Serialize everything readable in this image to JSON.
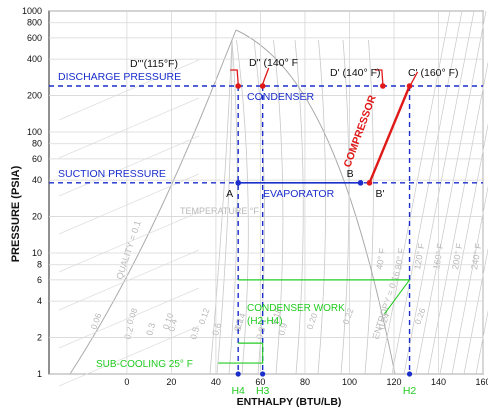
{
  "colors": {
    "blue": "#1a2ecc",
    "red": "#e01818",
    "green": "#22cc22",
    "dark": "#111111",
    "bg_lines": "#c8c8c8",
    "bg_text": "#b8b8b8"
  },
  "chart_data": {
    "type": "line",
    "xlabel": "ENTHALPY (BTU/LB)",
    "ylabel": "PRESSURE (PSIA)",
    "xlim": [
      -35,
      160
    ],
    "ylim": [
      1,
      1000
    ],
    "y_scale": "log",
    "grid": true,
    "x_ticks": [
      0,
      20,
      40,
      60,
      80,
      100,
      120,
      140,
      160
    ],
    "y_ticks": [
      1,
      2,
      4,
      6,
      8,
      10,
      20,
      40,
      60,
      80,
      100,
      200,
      400,
      600,
      800,
      1000
    ],
    "pressures": {
      "discharge": {
        "value": 240,
        "label": "DISCHARGE PRESSURE"
      },
      "suction": {
        "value": 38,
        "label": "SUCTION PRESSURE"
      }
    },
    "enthalpy_refs": {
      "H4": {
        "value": 50,
        "label": "H4"
      },
      "H3": {
        "value": 61,
        "label": "H3"
      },
      "H2": {
        "value": 127,
        "label": "H2"
      }
    },
    "points": [
      {
        "id": "D3",
        "label": "D'''(115°F)",
        "x": 50,
        "y": 240
      },
      {
        "id": "D2",
        "label": "D'' (140° F",
        "x": 61,
        "y": 240
      },
      {
        "id": "D1",
        "label": "D' (140° F)",
        "x": 115,
        "y": 240
      },
      {
        "id": "C1",
        "label": "C' (160° F)",
        "x": 127,
        "y": 240
      },
      {
        "id": "A",
        "label": "A",
        "x": 50,
        "y": 38
      },
      {
        "id": "B",
        "label": "B",
        "x": 105,
        "y": 38
      },
      {
        "id": "B1",
        "label": "B'",
        "x": 109,
        "y": 38
      }
    ],
    "annotations": {
      "condenser": "CONDENSER",
      "evaporator": "EVAPORATOR",
      "compressor": "COMPRESSOR",
      "condenser_work": "CONDENSER WORK",
      "condenser_work_sub": "(H2-H4)",
      "sub_cooling": "SUB-COOLING 25° F",
      "temperature": "TEMPERATURE °F",
      "quality_low": "QUALITY = 0.1",
      "quality_values": [
        "0.2",
        "0.3",
        "0.4",
        "0.5",
        "0.6",
        "0.7",
        "0.8",
        "0.9"
      ],
      "entropy": "ENTROPY = 0.16",
      "temp_values": [
        "40° F",
        "80° F",
        "120° F",
        "160° F",
        "200° F",
        "240° F"
      ],
      "entropy_values": [
        "0.06",
        "0.08",
        "0.10",
        "0.12",
        "0.14",
        "0.18",
        "0.20",
        "0.22",
        "0.24",
        "0.26"
      ]
    }
  }
}
